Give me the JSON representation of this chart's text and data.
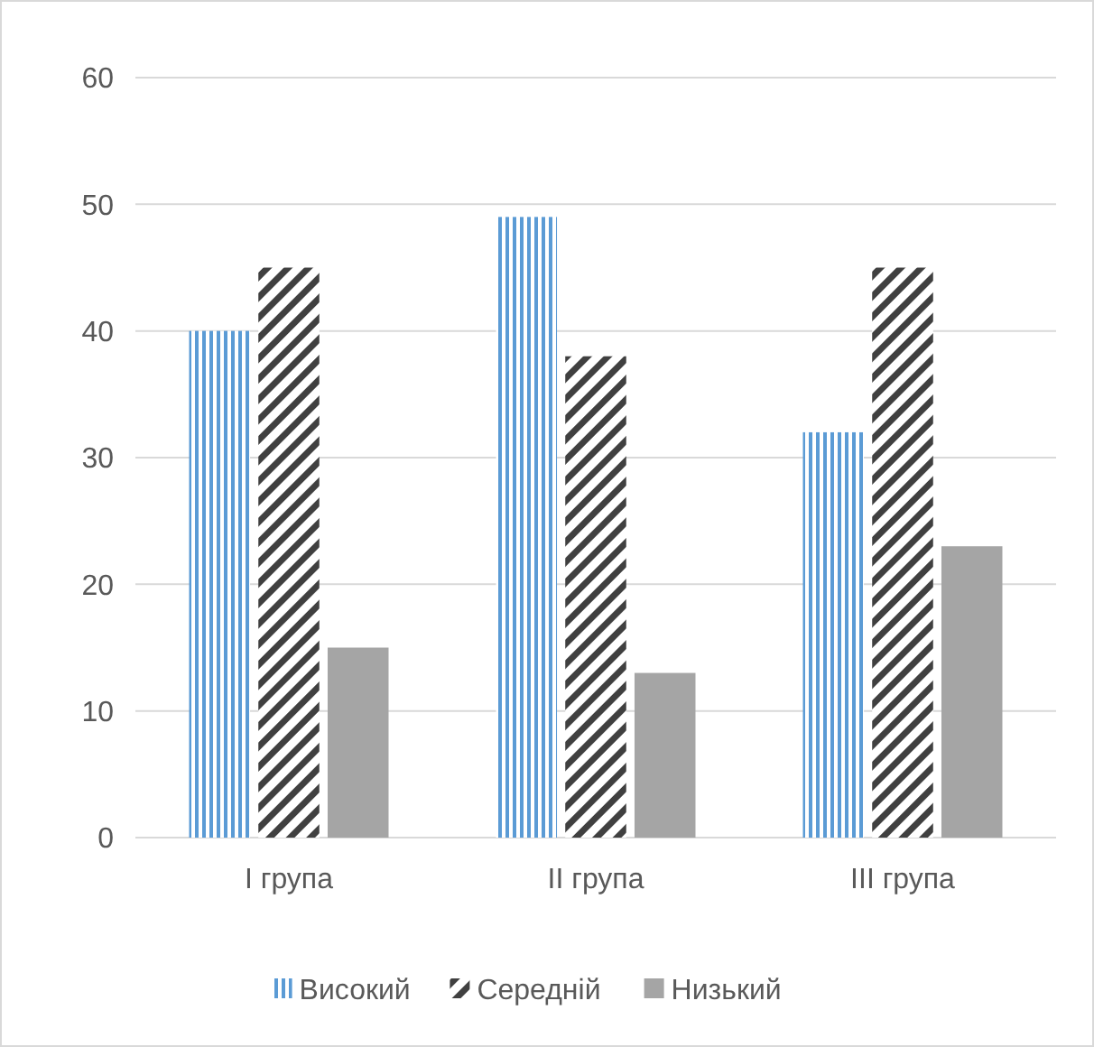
{
  "chart_data": {
    "type": "bar",
    "categories": [
      "I група",
      "II група",
      "III група"
    ],
    "series": [
      {
        "name": "Високий",
        "color": "#5b9bd5",
        "values": [
          40,
          49,
          32
        ]
      },
      {
        "name": "Середній",
        "color": "#404040",
        "values": [
          45,
          38,
          45
        ]
      },
      {
        "name": "Низький",
        "color": "#a5a5a5",
        "values": [
          15,
          13,
          23
        ]
      }
    ],
    "ylim": [
      0,
      60
    ],
    "yticks": [
      0,
      10,
      20,
      30,
      40,
      50,
      60
    ],
    "grid": "y",
    "legend": "bottom"
  }
}
